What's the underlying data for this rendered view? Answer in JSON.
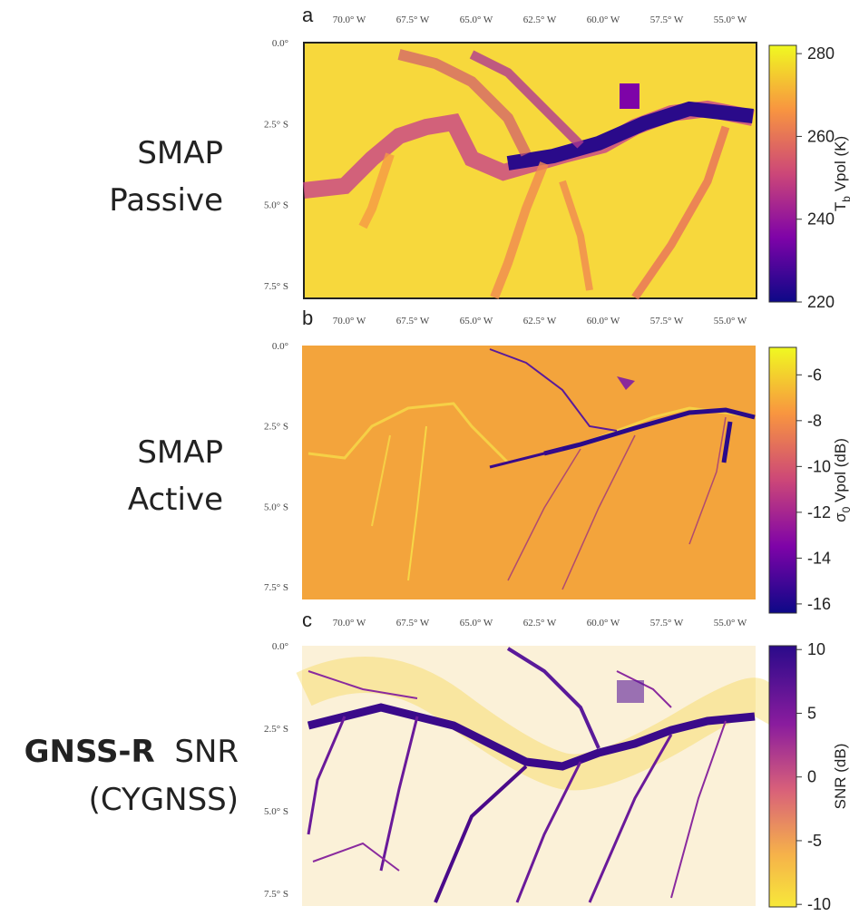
{
  "panels": [
    {
      "letter": "a",
      "side_label": [
        "SMAP",
        "Passive"
      ],
      "lon_ticks": [
        "70.0° W",
        "67.5° W",
        "65.0° W",
        "62.5° W",
        "60.0° W",
        "57.5° W",
        "55.0° W"
      ],
      "lat_ticks": [
        "0.0°",
        "2.5° S",
        "5.0° S",
        "7.5° S"
      ],
      "colorbar": {
        "label": {
          "main": "T",
          "sub": "b",
          "rest": " Vpol (K)"
        },
        "lim": [
          220,
          282
        ],
        "ticks": [
          280,
          260,
          240,
          220
        ]
      }
    },
    {
      "letter": "b",
      "side_label": [
        "SMAP",
        "Active"
      ],
      "lon_ticks": [
        "70.0° W",
        "67.5° W",
        "65.0° W",
        "62.5° W",
        "60.0° W",
        "57.5° W",
        "55.0° W"
      ],
      "lat_ticks": [
        "0.0°",
        "2.5° S",
        "5.0° S",
        "7.5° S"
      ],
      "colorbar": {
        "label": {
          "main": "σ",
          "sub": "0",
          "rest": " Vpol (dB)"
        },
        "lim": [
          -16.4,
          -4.8
        ],
        "ticks": [
          -6,
          -8,
          -10,
          -12,
          -14,
          -16
        ]
      }
    },
    {
      "letter": "c",
      "side_label": [
        {
          "bold": "GNSS-R",
          "rest": "SNR"
        },
        "(CYGNSS)"
      ],
      "lon_ticks": [
        "70.0° W",
        "67.5° W",
        "65.0° W",
        "62.5° W",
        "60.0° W",
        "57.5° W",
        "55.0° W"
      ],
      "lat_ticks": [
        "0.0°",
        "2.5° S",
        "5.0° S",
        "7.5° S"
      ],
      "colorbar": {
        "label": {
          "main": "SNR (dB)"
        },
        "lim": [
          -10.2,
          10.3
        ],
        "ticks": [
          10,
          5,
          0,
          -5,
          -10
        ]
      }
    }
  ]
}
